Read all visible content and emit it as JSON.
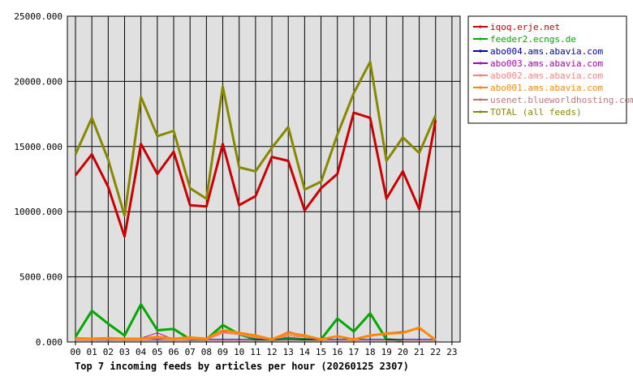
{
  "chart_data": {
    "type": "line",
    "title": "Top 7 incoming feeds by articles per hour (20260125 2307)",
    "x": [
      "00",
      "01",
      "02",
      "03",
      "04",
      "05",
      "06",
      "07",
      "08",
      "09",
      "10",
      "11",
      "12",
      "13",
      "14",
      "15",
      "16",
      "17",
      "18",
      "19",
      "20",
      "21",
      "22",
      "23"
    ],
    "y_ticks": [
      "0.000",
      "5000.000",
      "10000.000",
      "15000.000",
      "20000.000",
      "25000.000"
    ],
    "ylim": [
      0,
      25000
    ],
    "grid": true,
    "legend_position": "right",
    "series": [
      {
        "name": "iqoq.erje.net",
        "color": "#cc0000",
        "width": 3,
        "values": [
          12800,
          14400,
          11900,
          8100,
          15200,
          12900,
          14600,
          10500,
          10400,
          15200,
          10500,
          11200,
          14200,
          13900,
          10100,
          11800,
          12900,
          17600,
          17200,
          11000,
          13100,
          10200,
          17000,
          null
        ]
      },
      {
        "name": "feeder2.ecngs.de",
        "color": "#00aa00",
        "width": 3,
        "values": [
          400,
          2400,
          1400,
          500,
          2900,
          900,
          1000,
          200,
          200,
          1300,
          600,
          200,
          200,
          300,
          200,
          200,
          1800,
          800,
          2200,
          200,
          100,
          null,
          null,
          null
        ]
      },
      {
        "name": "abo004.ams.abavia.com",
        "color": "#0000aa",
        "width": 1,
        "values": [
          200,
          200,
          200,
          200,
          200,
          200,
          200,
          200,
          200,
          200,
          200,
          200,
          200,
          200,
          200,
          200,
          200,
          200,
          200,
          200,
          200,
          200,
          200,
          null
        ]
      },
      {
        "name": "abo003.ams.abavia.com",
        "color": "#aa00aa",
        "width": 1,
        "values": [
          300,
          300,
          300,
          200,
          300,
          700,
          200,
          200,
          300,
          800,
          700,
          400,
          200,
          800,
          500,
          200,
          400,
          200,
          500,
          700,
          800,
          1000,
          200,
          null
        ]
      },
      {
        "name": "abo002.ams.abavia.com",
        "color": "#ff7f7f",
        "width": 2,
        "values": [
          200,
          250,
          250,
          200,
          200,
          300,
          200,
          250,
          200,
          700,
          600,
          350,
          200,
          500,
          400,
          200,
          450,
          200,
          500,
          600,
          700,
          1100,
          200,
          null
        ]
      },
      {
        "name": "abo001.ams.abavia.com",
        "color": "#ff8800",
        "width": 3,
        "values": [
          300,
          250,
          300,
          250,
          250,
          400,
          250,
          350,
          250,
          900,
          700,
          500,
          200,
          700,
          500,
          200,
          450,
          200,
          500,
          650,
          700,
          1100,
          150,
          null
        ]
      },
      {
        "name": "usenet.blueworldhosting.com",
        "color": "#bb7777",
        "width": 1,
        "values": [
          100,
          100,
          100,
          100,
          100,
          100,
          100,
          100,
          100,
          100,
          100,
          100,
          100,
          100,
          100,
          100,
          100,
          100,
          100,
          100,
          100,
          100,
          100,
          null
        ]
      },
      {
        "name": "TOTAL (all feeds)",
        "color": "#888800",
        "width": 3,
        "values": [
          14400,
          17200,
          14000,
          9700,
          18800,
          15800,
          16200,
          11800,
          11000,
          19600,
          13400,
          13100,
          14900,
          16500,
          11700,
          12300,
          15900,
          19100,
          21500,
          13900,
          15700,
          14500,
          17400,
          null
        ]
      }
    ]
  }
}
